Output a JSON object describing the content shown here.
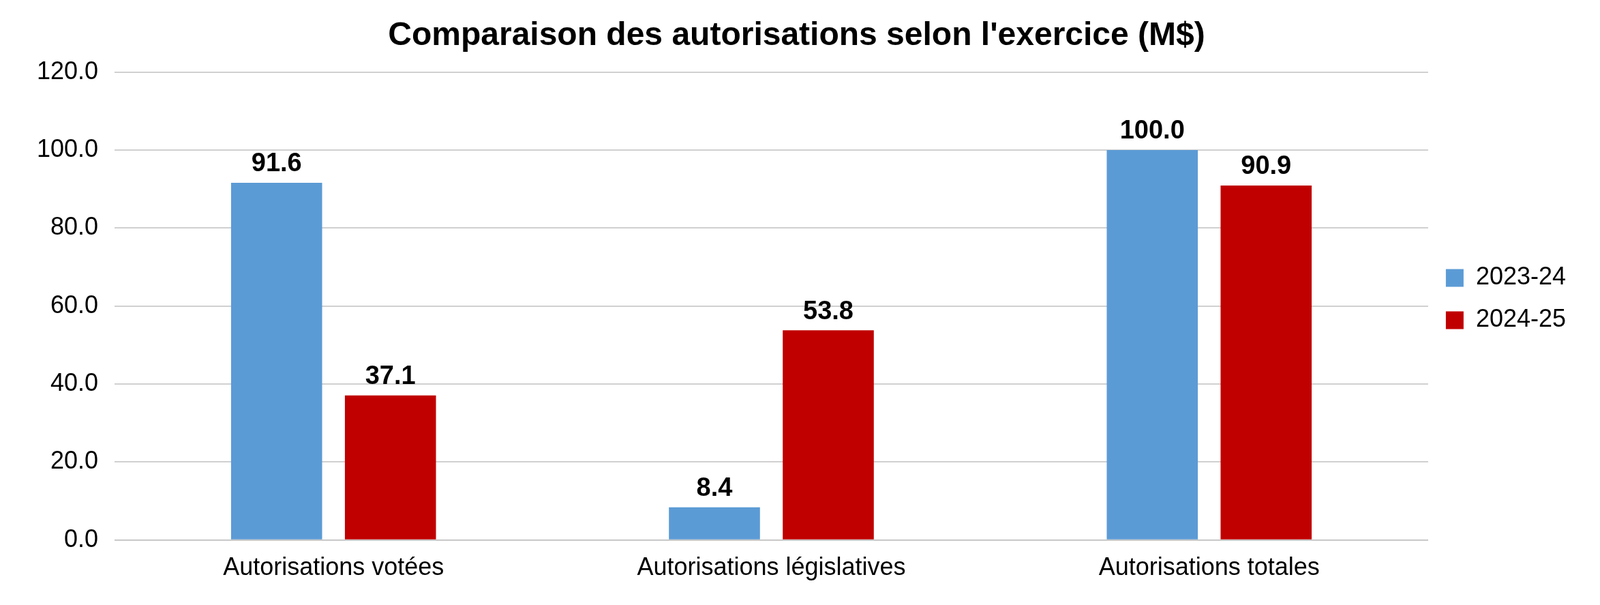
{
  "chart_data": {
    "type": "bar",
    "title": "Comparaison des autorisations selon l'exercice (M$)",
    "categories": [
      "Autorisations votées",
      "Autorisations législatives",
      "Autorisations totales"
    ],
    "series": [
      {
        "name": "2023-24",
        "color": "#5b9bd5",
        "values": [
          91.6,
          8.4,
          100.0
        ],
        "value_labels": [
          "91.6",
          "8.4",
          "100.0"
        ]
      },
      {
        "name": "2024-25",
        "color": "#c00000",
        "values": [
          37.1,
          53.8,
          90.9
        ],
        "value_labels": [
          "37.1",
          "53.8",
          "90.9"
        ]
      }
    ],
    "ylim": [
      0,
      120
    ],
    "yticks": [
      {
        "value": 0,
        "label": "0.0"
      },
      {
        "value": 20,
        "label": "20.0"
      },
      {
        "value": 40,
        "label": "40.0"
      },
      {
        "value": 60,
        "label": "60.0"
      },
      {
        "value": 80,
        "label": "80.0"
      },
      {
        "value": 100,
        "label": "100.0"
      },
      {
        "value": 120,
        "label": "120.0"
      }
    ],
    "grid": true,
    "legend": "right",
    "data_labels": true
  }
}
